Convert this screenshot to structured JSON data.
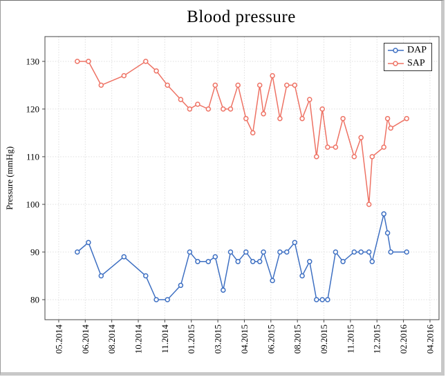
{
  "chart_data": {
    "type": "line",
    "title": "Blood pressure",
    "xlabel": "",
    "ylabel": "Pressure (mmHg)",
    "grid": true,
    "legend_position": "top-right",
    "marker": "open-circle",
    "ylim": [
      75.8,
      135.2
    ],
    "yticks": [
      80,
      90,
      100,
      110,
      120,
      130
    ],
    "xlim_dates": [
      "2014-04-05",
      "2016-04-17"
    ],
    "xticks": [
      {
        "label": "05.2014",
        "date": "2014-05-01"
      },
      {
        "label": "06.2014",
        "date": "2014-06-20"
      },
      {
        "label": "08.2014",
        "date": "2014-08-09"
      },
      {
        "label": "10.2014",
        "date": "2014-09-28"
      },
      {
        "label": "11.2014",
        "date": "2014-11-17"
      },
      {
        "label": "01.2015",
        "date": "2015-01-06"
      },
      {
        "label": "03.2015",
        "date": "2015-02-25"
      },
      {
        "label": "04.2015",
        "date": "2015-04-16"
      },
      {
        "label": "06.2015",
        "date": "2015-06-05"
      },
      {
        "label": "08.2015",
        "date": "2015-07-25"
      },
      {
        "label": "09.2015",
        "date": "2015-09-13"
      },
      {
        "label": "11.2015",
        "date": "2015-11-02"
      },
      {
        "label": "12.2015",
        "date": "2015-12-22"
      },
      {
        "label": "02.2016",
        "date": "2016-02-10"
      },
      {
        "label": "04.2016",
        "date": "2016-03-31"
      }
    ],
    "x_dates": [
      "2014-06-05",
      "2014-06-26",
      "2014-07-20",
      "2014-09-01",
      "2014-10-12",
      "2014-11-01",
      "2014-11-22",
      "2014-12-17",
      "2015-01-03",
      "2015-01-18",
      "2015-02-07",
      "2015-02-20",
      "2015-03-07",
      "2015-03-21",
      "2015-04-04",
      "2015-04-19",
      "2015-05-02",
      "2015-05-15",
      "2015-05-22",
      "2015-06-08",
      "2015-06-22",
      "2015-07-05",
      "2015-07-20",
      "2015-08-03",
      "2015-08-17",
      "2015-08-30",
      "2015-09-10",
      "2015-09-20",
      "2015-10-05",
      "2015-10-19",
      "2015-11-09",
      "2015-11-22",
      "2015-12-07",
      "2015-12-13",
      "2016-01-04",
      "2016-01-11",
      "2016-01-17",
      "2016-02-16"
    ],
    "series": [
      {
        "name": "DAP",
        "color": "#3d6fc2",
        "values": [
          90,
          92,
          85,
          89,
          85,
          80,
          80,
          83,
          90,
          88,
          88,
          89,
          82,
          90,
          88,
          90,
          88,
          88,
          90,
          84,
          90,
          90,
          92,
          85,
          88,
          80,
          80,
          80,
          90,
          88,
          90,
          90,
          90,
          88,
          98,
          94,
          90,
          90
        ]
      },
      {
        "name": "SAP",
        "color": "#ee7264",
        "values": [
          130,
          130,
          125,
          127,
          130,
          128,
          125,
          122,
          120,
          121,
          120,
          125,
          120,
          120,
          125,
          118,
          115,
          125,
          119,
          127,
          118,
          125,
          125,
          118,
          122,
          110,
          120,
          112,
          112,
          118,
          110,
          114,
          100,
          110,
          112,
          118,
          116,
          118
        ]
      }
    ]
  }
}
